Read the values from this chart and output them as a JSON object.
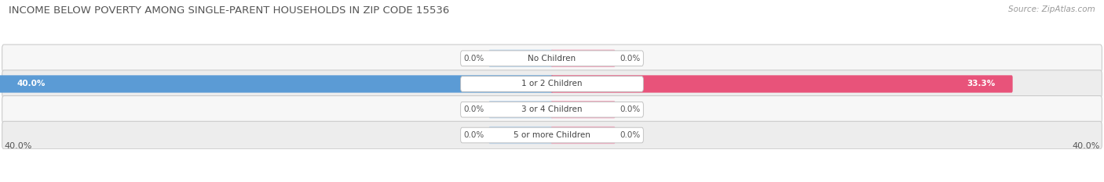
{
  "title": "INCOME BELOW POVERTY AMONG SINGLE-PARENT HOUSEHOLDS IN ZIP CODE 15536",
  "source": "Source: ZipAtlas.com",
  "categories": [
    "No Children",
    "1 or 2 Children",
    "3 or 4 Children",
    "5 or more Children"
  ],
  "father_values": [
    0.0,
    40.0,
    0.0,
    0.0
  ],
  "mother_values": [
    0.0,
    33.3,
    0.0,
    0.0
  ],
  "xlim": 40.0,
  "father_color_full": "#5B9BD5",
  "father_color_light": "#BDD7EE",
  "mother_color_full": "#E8537A",
  "mother_color_light": "#F4A7BE",
  "row_bg_even": "#EDEDED",
  "row_bg_odd": "#F7F7F7",
  "title_fontsize": 9.5,
  "source_fontsize": 7.5,
  "label_fontsize": 7.5,
  "value_fontsize": 7.5,
  "legend_fontsize": 8,
  "axis_label_fontsize": 8,
  "zero_bar_width": 4.5
}
